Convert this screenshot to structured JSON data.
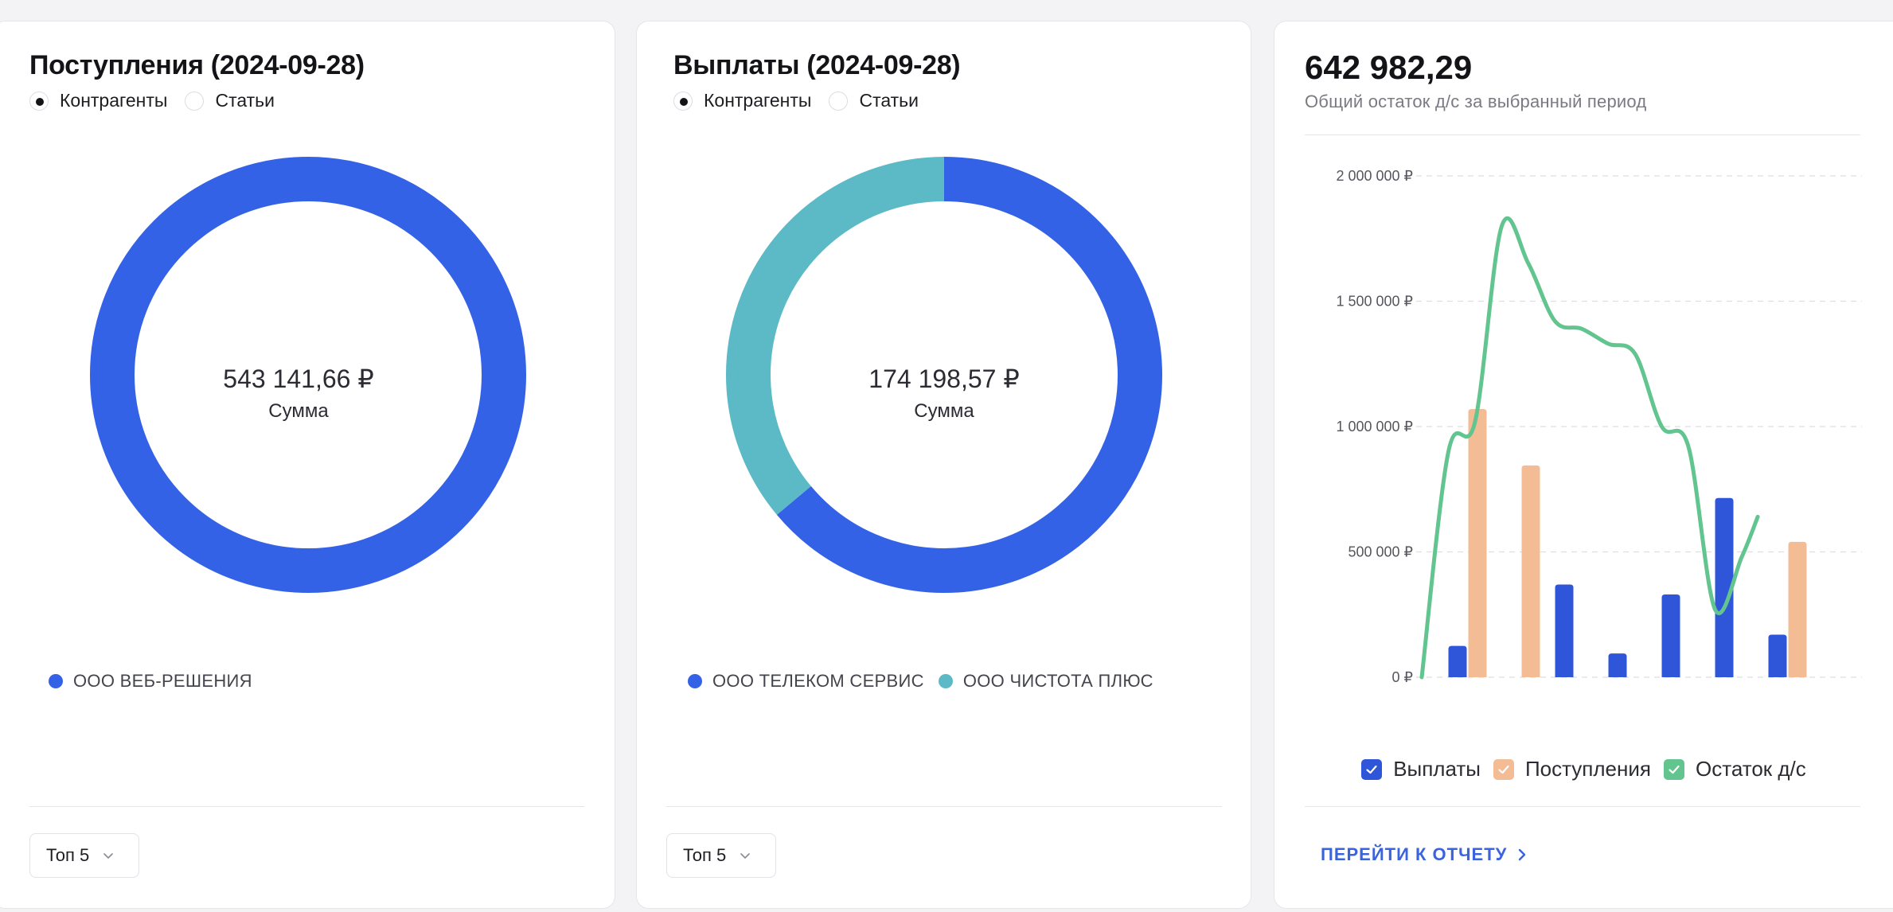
{
  "income": {
    "title": "Поступления (2024-09-28)",
    "radio": {
      "counterparties": "Контрагенты",
      "items": "Статьи",
      "selected": "counterparties"
    },
    "center_value": "543 141,66 ₽",
    "center_caption": "Сумма",
    "legend": [
      {
        "label": "ООО ВЕБ-РЕШЕНИЯ",
        "color": "#3462e6"
      }
    ],
    "top_select": "Топ 5"
  },
  "payout": {
    "title": "Выплаты (2024-09-28)",
    "radio": {
      "counterparties": "Контрагенты",
      "items": "Статьи",
      "selected": "counterparties"
    },
    "center_value": "174 198,57 ₽",
    "center_caption": "Сумма",
    "legend": [
      {
        "label": "ООО ТЕЛЕКОМ СЕРВИС",
        "color": "#3462e6"
      },
      {
        "label": "ООО ЧИСТОТА ПЛЮС",
        "color": "#5bbac6"
      }
    ],
    "top_select": "Топ 5"
  },
  "balance": {
    "total": "642 982,29",
    "subtitle": "Общий остаток д/с за выбранный период",
    "legend": [
      {
        "label": "Выплаты",
        "color": "#2f55d8",
        "checked": true
      },
      {
        "label": "Поступления",
        "color": "#f3bc94",
        "checked": true
      },
      {
        "label": "Остаток д/с",
        "color": "#62c48e",
        "checked": true
      }
    ],
    "report_link": "ПЕРЕЙТИ К ОТЧЕТУ"
  },
  "chart_data": [
    {
      "type": "pie",
      "title": "Поступления (2024-09-28)",
      "labels": [
        "ООО ВЕБ-РЕШЕНИЯ"
      ],
      "values": [
        543141.66
      ],
      "colors": [
        "#3462e6"
      ]
    },
    {
      "type": "pie",
      "title": "Выплаты (2024-09-28)",
      "labels": [
        "ООО ТЕЛЕКОМ СЕРВИС",
        "ООО ЧИСТОТА ПЛЮС"
      ],
      "values": [
        111330,
        62868.57
      ],
      "colors": [
        "#3462e6",
        "#5bbac6"
      ]
    },
    {
      "type": "bar",
      "ylim": [
        0,
        2000000
      ],
      "y_ticks": [
        "0 ₽",
        "500 000 ₽",
        "1 000 000 ₽",
        "1 500 000 ₽",
        "2 000 000 ₽"
      ],
      "y_tick_values": [
        0,
        500000,
        1000000,
        1500000,
        2000000
      ],
      "grid": true,
      "legend_position": "bottom",
      "series": [
        {
          "name": "Выплаты",
          "kind": "bar",
          "color": "#2f55d8",
          "values": [
            125000,
            null,
            370000,
            95000,
            330000,
            715000,
            170000
          ]
        },
        {
          "name": "Поступления",
          "kind": "bar",
          "color": "#f3bc94",
          "values": [
            1070000,
            845000,
            null,
            null,
            null,
            null,
            540000
          ]
        },
        {
          "name": "Остаток д/с",
          "kind": "line",
          "color": "#62c48e",
          "x": [
            0,
            0.5,
            1.0,
            1.5,
            2.0,
            2.5,
            3.0,
            3.5,
            4.0,
            4.5,
            5.0,
            5.5,
            6.0,
            6.3
          ],
          "values": [
            0,
            900000,
            1020000,
            1800000,
            1650000,
            1420000,
            1390000,
            1330000,
            1290000,
            1000000,
            920000,
            270000,
            480000,
            640000
          ]
        }
      ]
    }
  ]
}
